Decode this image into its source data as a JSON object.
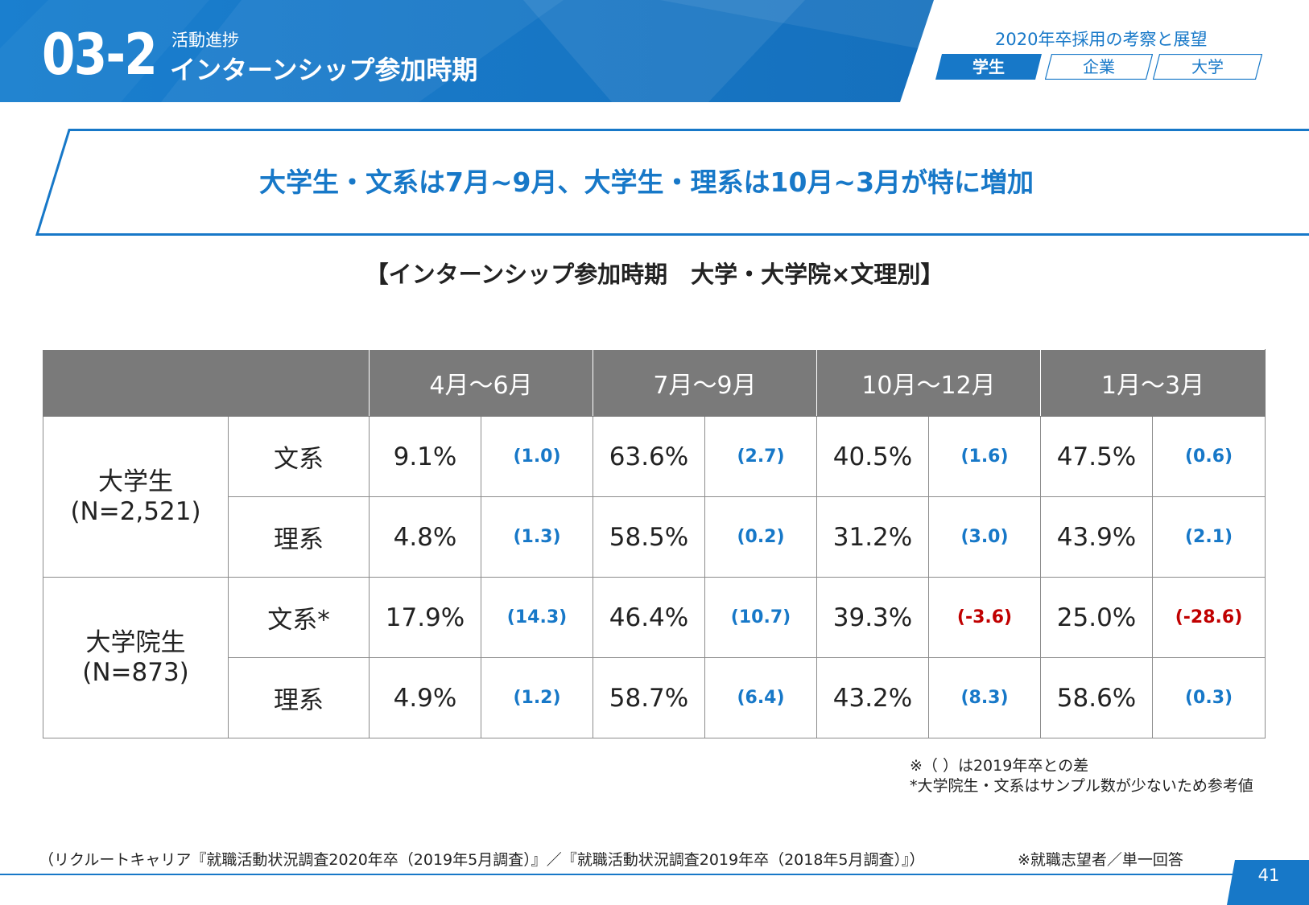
{
  "header": {
    "section_number": "03-2",
    "category": "活動進捗",
    "title": "インターンシップ参加時期",
    "report_title": "2020年卒採用の考察と展望",
    "tabs": [
      {
        "label": "学生",
        "active": true
      },
      {
        "label": "企業",
        "active": false
      },
      {
        "label": "大学",
        "active": false
      }
    ]
  },
  "headline": "大学生・文系は7月~9月、大学生・理系は10月~3月が特に増加",
  "subtitle": "【インターンシップ参加時期　大学・大学院×文理別】",
  "table": {
    "columns": [
      "4月～6月",
      "7月～9月",
      "10月～12月",
      "1月～3月"
    ],
    "groups": [
      {
        "label": "大学生",
        "n": "(N=2,521)",
        "rows": [
          {
            "label": "文系",
            "values": [
              "9.1%",
              "63.6%",
              "40.5%",
              "47.5%"
            ],
            "diffs": [
              "(1.0)",
              "(2.7)",
              "(1.6)",
              "(0.6)"
            ]
          },
          {
            "label": "理系",
            "values": [
              "4.8%",
              "58.5%",
              "31.2%",
              "43.9%"
            ],
            "diffs": [
              "(1.3)",
              "(0.2)",
              "(3.0)",
              "(2.1)"
            ]
          }
        ]
      },
      {
        "label": "大学院生",
        "n": "(N=873)",
        "rows": [
          {
            "label": "文系*",
            "values": [
              "17.9%",
              "46.4%",
              "39.3%",
              "25.0%"
            ],
            "diffs": [
              "(14.3)",
              "(10.7)",
              "(-3.6)",
              "(-28.6)"
            ]
          },
          {
            "label": "理系",
            "values": [
              "4.9%",
              "58.7%",
              "43.2%",
              "58.6%"
            ],
            "diffs": [
              "(1.2)",
              "(6.4)",
              "(8.3)",
              "(0.3)"
            ]
          }
        ]
      }
    ]
  },
  "notes": [
    "※（ ）は2019年卒との差",
    "*大学院生・文系はサンプル数が少ないため参考値"
  ],
  "source": "（リクルートキャリア『就職活動状況調査2020年卒（2019年5月調査）』／『就職活動状況調査2019年卒（2018年5月調査）』）",
  "respondents": "※就職志望者／単一回答",
  "page_number": "41",
  "colors": {
    "brand_blue": "#1778c8",
    "negative_red": "#c00000",
    "header_gray": "#7a7a7a"
  }
}
